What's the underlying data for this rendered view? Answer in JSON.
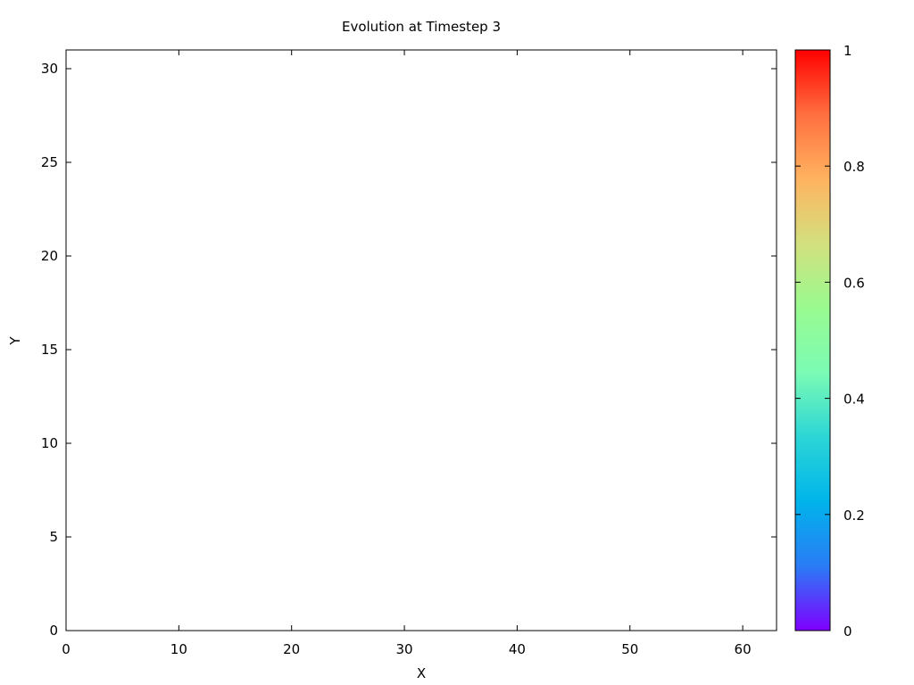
{
  "chart_data": {
    "type": "heatmap",
    "title": "Evolution at Timestep 3",
    "xlabel": "X",
    "ylabel": "Y",
    "xlim": [
      0,
      63
    ],
    "ylim": [
      0,
      31
    ],
    "x_ticks": [
      0,
      10,
      20,
      30,
      40,
      50,
      60
    ],
    "y_ticks": [
      0,
      5,
      10,
      15,
      20,
      25,
      30
    ],
    "values": [],
    "grid": false,
    "colorbar": {
      "range": [
        0,
        1
      ],
      "ticks": [
        0,
        0.2,
        0.4,
        0.6,
        0.8,
        1
      ],
      "tick_labels": [
        "0",
        "0.2",
        "0.4",
        "0.6",
        "0.8",
        "1"
      ],
      "palette": "rainbow",
      "colors": [
        "#7f00ff",
        "#2a7cf6",
        "#00b4eb",
        "#2cd6d6",
        "#7bfbb4",
        "#99fb90",
        "#d3e07e",
        "#ffb360",
        "#ff6f3f",
        "#ff0000"
      ]
    }
  }
}
